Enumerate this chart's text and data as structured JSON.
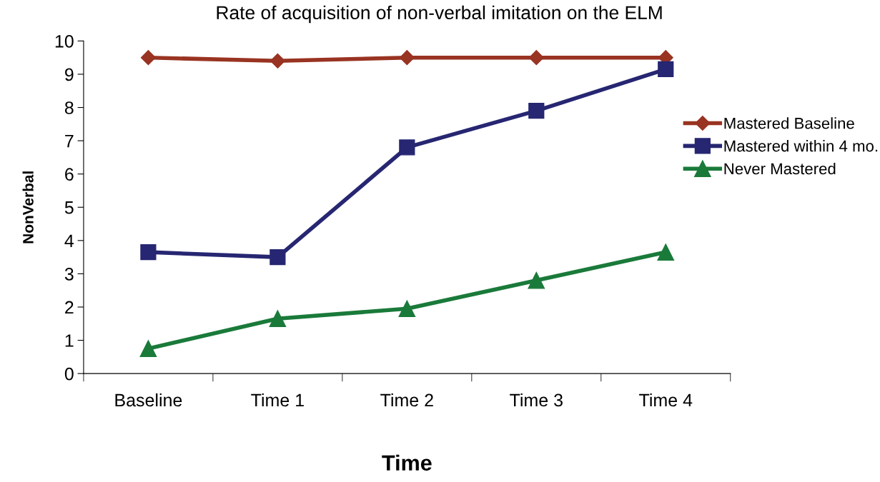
{
  "chart_data": {
    "type": "line",
    "title": "Rate of acquisition of non-verbal imitation on the ELM",
    "xlabel": "Time",
    "ylabel": "NonVerbal",
    "categories": [
      "Baseline",
      "Time 1",
      "Time 2",
      "Time 3",
      "Time 4"
    ],
    "ylim": [
      0,
      10
    ],
    "yticks": [
      0,
      1,
      2,
      3,
      4,
      5,
      6,
      7,
      8,
      9,
      10
    ],
    "grid": false,
    "legend": "right",
    "series": [
      {
        "name": "Mastered Baseline",
        "color": "#993322",
        "marker": "diamond",
        "values": [
          9.5,
          9.4,
          9.5,
          9.5,
          9.5
        ]
      },
      {
        "name": "Mastered within 4 mo.",
        "color": "#262672",
        "marker": "square",
        "values": [
          3.65,
          3.5,
          6.8,
          7.9,
          9.15
        ]
      },
      {
        "name": "Never Mastered",
        "color": "#1a7a3a",
        "marker": "triangle",
        "values": [
          0.75,
          1.65,
          1.95,
          2.8,
          3.65
        ]
      }
    ]
  }
}
